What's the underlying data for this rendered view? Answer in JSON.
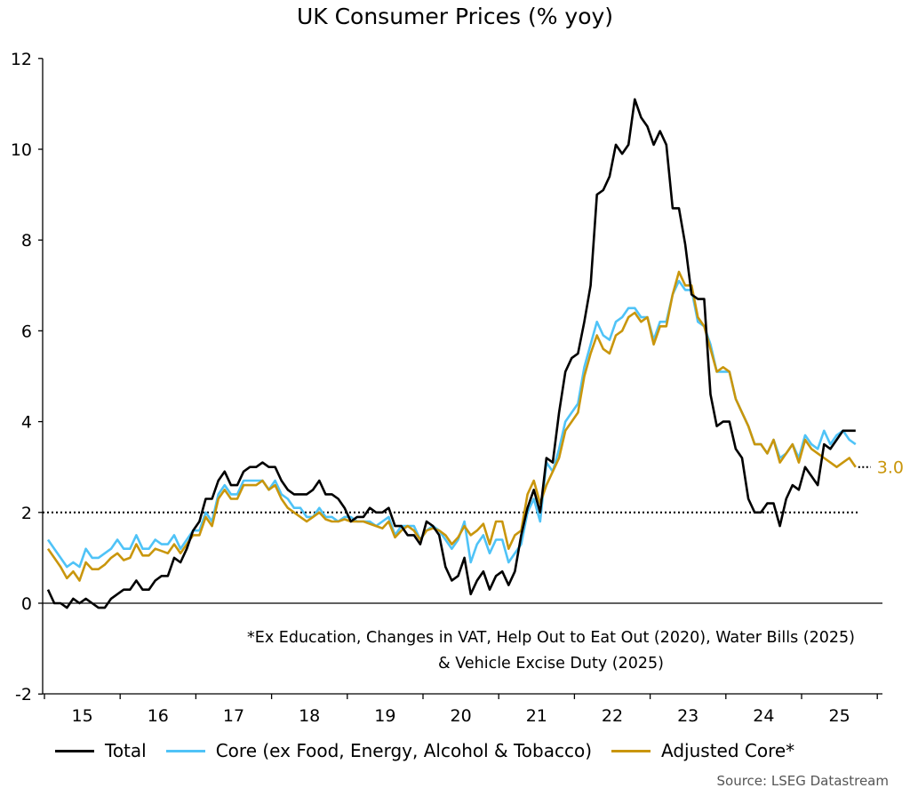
{
  "chart_data": {
    "type": "line",
    "title": "UK Consumer Prices (% yoy)",
    "xlabel": "",
    "ylabel": "",
    "ylim": [
      -2,
      12
    ],
    "yticks": [
      -2,
      0,
      2,
      4,
      6,
      8,
      10,
      12
    ],
    "xtick_labels": [
      "15",
      "16",
      "17",
      "18",
      "19",
      "20",
      "21",
      "22",
      "23",
      "24",
      "25"
    ],
    "x_start": "2015-01",
    "x_end": "2025-09",
    "x_frequency": "monthly",
    "grid": false,
    "legend_position": "bottom",
    "reference_line": {
      "y": 2,
      "style": "dotted"
    },
    "end_label": {
      "series": "Adjusted Core*",
      "text": "3.0"
    },
    "series": [
      {
        "name": "Total",
        "color": "#000000",
        "values": [
          0.3,
          0.0,
          0.0,
          -0.1,
          0.1,
          0.0,
          0.1,
          0.0,
          -0.1,
          -0.1,
          0.1,
          0.2,
          0.3,
          0.3,
          0.5,
          0.3,
          0.3,
          0.5,
          0.6,
          0.6,
          1.0,
          0.9,
          1.2,
          1.6,
          1.8,
          2.3,
          2.3,
          2.7,
          2.9,
          2.6,
          2.6,
          2.9,
          3.0,
          3.0,
          3.1,
          3.0,
          3.0,
          2.7,
          2.5,
          2.4,
          2.4,
          2.4,
          2.5,
          2.7,
          2.4,
          2.4,
          2.3,
          2.1,
          1.8,
          1.9,
          1.9,
          2.1,
          2.0,
          2.0,
          2.1,
          1.7,
          1.7,
          1.5,
          1.5,
          1.3,
          1.8,
          1.7,
          1.5,
          0.8,
          0.5,
          0.6,
          1.0,
          0.2,
          0.5,
          0.7,
          0.3,
          0.6,
          0.7,
          0.4,
          0.7,
          1.5,
          2.1,
          2.5,
          2.0,
          3.2,
          3.1,
          4.2,
          5.1,
          5.4,
          5.5,
          6.2,
          7.0,
          9.0,
          9.1,
          9.4,
          10.1,
          9.9,
          10.1,
          11.1,
          10.7,
          10.5,
          10.1,
          10.4,
          10.1,
          8.7,
          8.7,
          7.9,
          6.8,
          6.7,
          6.7,
          4.6,
          3.9,
          4.0,
          4.0,
          3.4,
          3.2,
          2.3,
          2.0,
          2.0,
          2.2,
          2.2,
          1.7,
          2.3,
          2.6,
          2.5,
          3.0,
          2.8,
          2.6,
          3.5,
          3.4,
          3.6,
          3.8,
          3.8,
          3.8
        ]
      },
      {
        "name": "Core (ex Food, Energy, Alcohol & Tobacco)",
        "color": "#4FC3F7",
        "values": [
          1.4,
          1.2,
          1.0,
          0.8,
          0.9,
          0.8,
          1.2,
          1.0,
          1.0,
          1.1,
          1.2,
          1.4,
          1.2,
          1.2,
          1.5,
          1.2,
          1.2,
          1.4,
          1.3,
          1.3,
          1.5,
          1.2,
          1.4,
          1.6,
          1.6,
          2.0,
          1.8,
          2.4,
          2.6,
          2.4,
          2.4,
          2.7,
          2.7,
          2.7,
          2.7,
          2.5,
          2.7,
          2.4,
          2.3,
          2.1,
          2.1,
          1.9,
          1.9,
          2.1,
          1.9,
          1.9,
          1.8,
          1.9,
          1.9,
          1.8,
          1.8,
          1.8,
          1.7,
          1.8,
          1.9,
          1.5,
          1.7,
          1.7,
          1.7,
          1.4,
          1.6,
          1.7,
          1.6,
          1.4,
          1.2,
          1.4,
          1.8,
          0.9,
          1.3,
          1.5,
          1.1,
          1.4,
          1.4,
          0.9,
          1.1,
          1.3,
          2.0,
          2.3,
          1.8,
          3.1,
          2.9,
          3.4,
          4.0,
          4.2,
          4.4,
          5.2,
          5.7,
          6.2,
          5.9,
          5.8,
          6.2,
          6.3,
          6.5,
          6.5,
          6.3,
          6.3,
          5.8,
          6.2,
          6.2,
          6.8,
          7.1,
          6.9,
          6.9,
          6.2,
          6.1,
          5.7,
          5.1,
          5.1,
          5.1,
          4.5,
          4.2,
          3.9,
          3.5,
          3.5,
          3.3,
          3.6,
          3.2,
          3.3,
          3.5,
          3.2,
          3.7,
          3.5,
          3.4,
          3.8,
          3.5,
          3.7,
          3.8,
          3.6,
          3.5
        ]
      },
      {
        "name": "Adjusted Core*",
        "color": "#C9960C",
        "values": [
          1.2,
          1.0,
          0.8,
          0.55,
          0.7,
          0.5,
          0.9,
          0.75,
          0.75,
          0.85,
          1.0,
          1.1,
          0.95,
          1.0,
          1.3,
          1.05,
          1.05,
          1.2,
          1.15,
          1.1,
          1.3,
          1.1,
          1.3,
          1.5,
          1.5,
          1.9,
          1.7,
          2.3,
          2.5,
          2.3,
          2.3,
          2.6,
          2.6,
          2.6,
          2.7,
          2.5,
          2.6,
          2.3,
          2.1,
          2.0,
          1.9,
          1.8,
          1.9,
          2.0,
          1.85,
          1.8,
          1.8,
          1.85,
          1.8,
          1.8,
          1.8,
          1.75,
          1.7,
          1.65,
          1.8,
          1.45,
          1.6,
          1.7,
          1.6,
          1.4,
          1.6,
          1.65,
          1.6,
          1.5,
          1.3,
          1.45,
          1.7,
          1.5,
          1.6,
          1.75,
          1.3,
          1.8,
          1.8,
          1.2,
          1.5,
          1.6,
          2.4,
          2.7,
          2.2,
          2.6,
          2.9,
          3.2,
          3.8,
          4.0,
          4.2,
          5.0,
          5.5,
          5.9,
          5.6,
          5.5,
          5.9,
          6.0,
          6.3,
          6.4,
          6.2,
          6.3,
          5.7,
          6.1,
          6.1,
          6.8,
          7.3,
          7.0,
          7.0,
          6.3,
          6.1,
          5.6,
          5.1,
          5.2,
          5.1,
          4.5,
          4.2,
          3.9,
          3.5,
          3.5,
          3.3,
          3.6,
          3.1,
          3.3,
          3.5,
          3.1,
          3.6,
          3.4,
          3.3,
          3.2,
          3.1,
          3.0,
          3.1,
          3.2,
          3.0
        ]
      }
    ],
    "footnote_lines": [
      "*Ex Education, Changes in VAT, Help Out to Eat Out (2020), Water Bills (2025)",
      "& Vehicle Excise Duty (2025)"
    ],
    "source": "Source: LSEG Datastream"
  }
}
